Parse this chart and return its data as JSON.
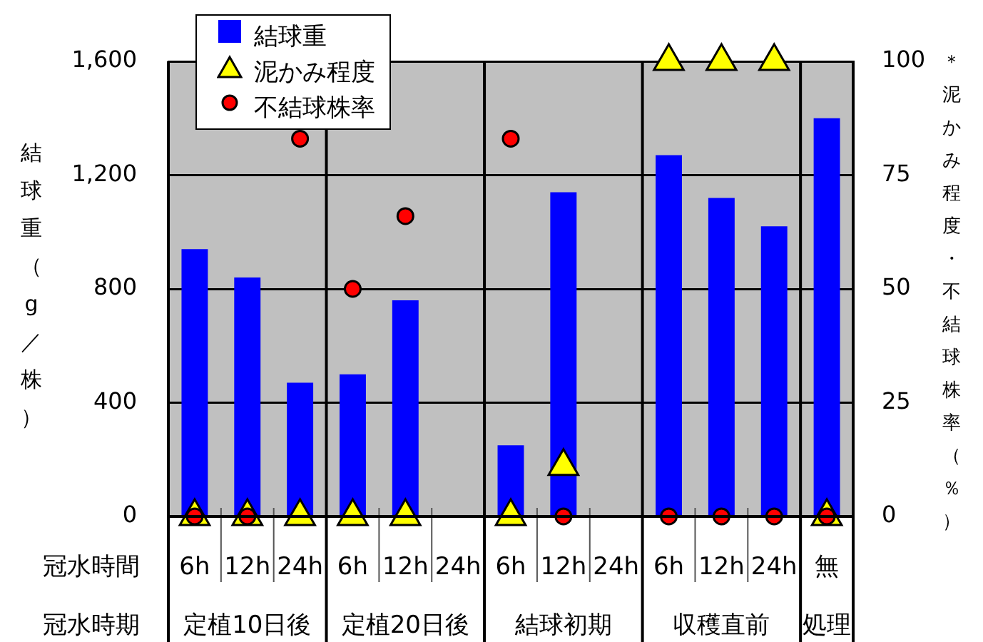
{
  "chart_data": {
    "type": "bar",
    "ylabel": "結球重（g／株）",
    "y2label": "＊泥かみ程度・不結球株率（％）",
    "xlabel": "冠水時間",
    "categories": [
      "6h",
      "12h",
      "24h",
      "6h",
      "12h",
      "24h",
      "6h",
      "12h",
      "24h",
      "6h",
      "12h",
      "24h",
      "無"
    ],
    "series": [
      {
        "name": "結球重",
        "color": "#0000ff",
        "values": [
          940,
          840,
          470,
          500,
          760,
          null,
          250,
          1140,
          null,
          1270,
          1120,
          1020,
          1400
        ]
      },
      {
        "name": "泥かみ程度",
        "type": "scatter",
        "axis": "y2",
        "marker": "triangle",
        "color": "#ffff00",
        "values": [
          0,
          0,
          0,
          0,
          0,
          null,
          0,
          11,
          null,
          100,
          100,
          100,
          0
        ]
      },
      {
        "name": "不結球株率",
        "type": "scatter",
        "axis": "y2",
        "marker": "circle",
        "color": "#ff0000",
        "values": [
          0,
          0,
          83,
          50,
          66,
          null,
          83,
          0,
          null,
          0,
          0,
          0,
          0
        ]
      }
    ],
    "ylim": [
      0,
      1600
    ],
    "yticks": [
      0,
      400,
      800,
      {
        "value": 1200,
        "label": "1,200"
      },
      {
        "value": 1600,
        "label": "1,600"
      }
    ],
    "y2lim": [
      0,
      100
    ],
    "y2ticks": [
      0,
      25,
      50,
      75,
      100
    ],
    "grid": "y",
    "legend": "top left",
    "annotations": [
      "冠水時期",
      "定植10日後",
      "定植20日後",
      "結球初期",
      "収穫直前",
      "処理"
    ]
  }
}
